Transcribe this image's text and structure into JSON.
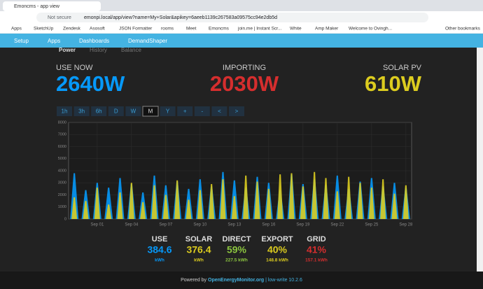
{
  "browser": {
    "tab_title": "Emoncms - app view",
    "security": "Not secure",
    "url": "emonpi.local/app/view?name=My+Solar&apikey=6aeeb1139c267583a09575cc94e2db5d",
    "bookmarks": [
      "Apps",
      "SketchUp",
      "Zendesk",
      "Asosoft",
      "JSON Formatter",
      "rooms",
      "Meet",
      "Emoncms",
      "join.me | Instant Scr...",
      "White",
      "Amp Maker",
      "Welcome to Ovingh...",
      "Other bookmarks"
    ]
  },
  "nav": {
    "items": [
      "Setup",
      "Apps",
      "Dashboards",
      "DemandShaper"
    ]
  },
  "app": {
    "tabs": [
      "Power",
      "History",
      "Balance"
    ],
    "now": [
      {
        "label": "USE NOW",
        "value": "2640W"
      },
      {
        "label": "IMPORTING",
        "value": "2030W"
      },
      {
        "label": "SOLAR PV",
        "value": "610W"
      }
    ],
    "ranges": [
      "1h",
      "3h",
      "6h",
      "D",
      "W",
      "M",
      "Y",
      "+",
      "-",
      "<",
      ">"
    ],
    "stats": [
      {
        "label": "USE",
        "value": "384.6",
        "sub": "kWh"
      },
      {
        "label": "SOLAR",
        "value": "376.4",
        "sub": "kWh"
      },
      {
        "label": "DIRECT",
        "value": "59%",
        "sub": "227.5 kWh"
      },
      {
        "label": "EXPORT",
        "value": "40%",
        "sub": "148.8 kWh"
      },
      {
        "label": "GRID",
        "value": "41%",
        "sub": "157.1 kWh"
      }
    ]
  },
  "chart_data": {
    "type": "area",
    "categories": [
      null,
      null,
      "Sep 01",
      null,
      null,
      "Sep 04",
      null,
      null,
      "Sep 07",
      null,
      null,
      "Sep 10",
      null,
      null,
      "Sep 13",
      null,
      null,
      "Sep 16",
      null,
      null,
      "Sep 19",
      null,
      null,
      "Sep 22",
      null,
      null,
      "Sep 25",
      null,
      null,
      "Sep 28"
    ],
    "series": [
      {
        "color": "#0699fa",
        "values": [
          3800,
          2400,
          3000,
          2600,
          3400,
          2900,
          2200,
          3600,
          2800,
          3100,
          2500,
          3300,
          2700,
          3900,
          3200,
          2600,
          3500,
          3000,
          2400,
          3700,
          2900,
          3300,
          2800,
          3600,
          2500,
          3100,
          3400,
          2700,
          3000,
          2600
        ]
      },
      {
        "color": "#dccc1f",
        "values": [
          1800,
          1500,
          2600,
          1200,
          2200,
          3000,
          1400,
          2800,
          2000,
          3200,
          1600,
          2400,
          2900,
          3300,
          1900,
          3600,
          3100,
          2500,
          3700,
          3800,
          2700,
          3900,
          3400,
          2300,
          3500,
          3000,
          2600,
          3300,
          2100,
          2800
        ]
      }
    ],
    "ylim": [
      0,
      8000
    ],
    "yticks": [
      0,
      1000,
      2000,
      3000,
      4000,
      5000,
      6000,
      7000,
      8000
    ],
    "grid": true
  },
  "footer": {
    "prefix": "Powered by",
    "link": "OpenEnergyMonitor.org",
    "suffix": "| low-write 10.2.6"
  }
}
